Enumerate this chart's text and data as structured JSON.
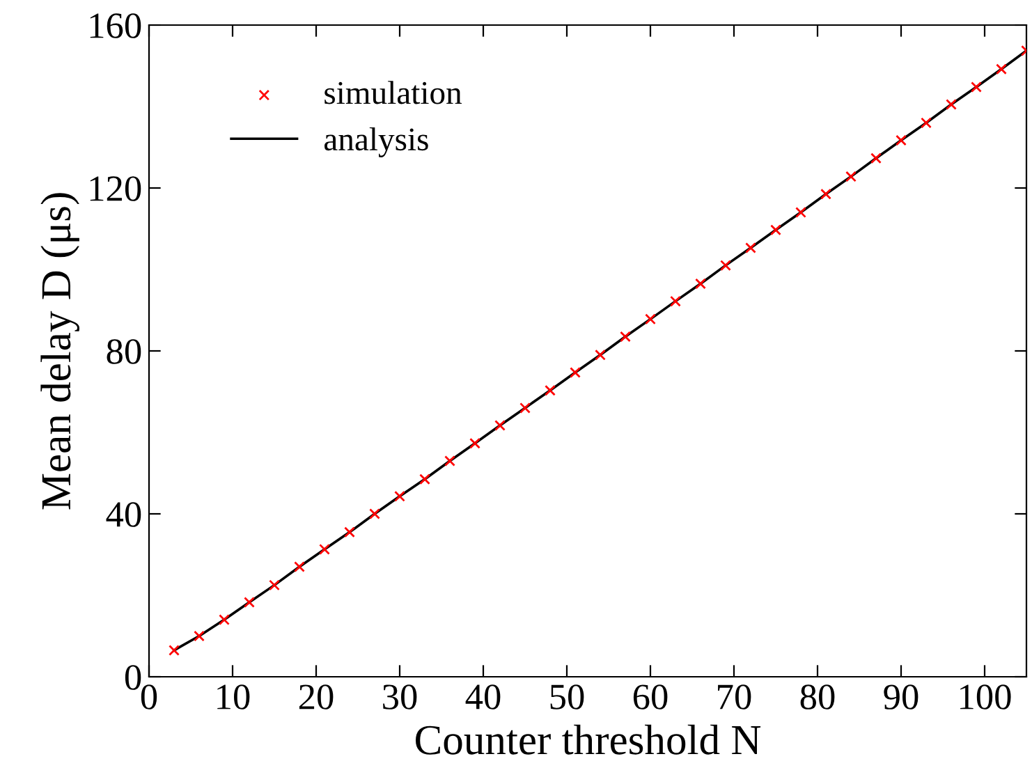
{
  "chart_data": {
    "type": "line",
    "xlabel": "Counter threshold N",
    "ylabel": "Mean delay D (μs)",
    "x": [
      3,
      6,
      9,
      12,
      15,
      18,
      21,
      24,
      27,
      30,
      33,
      36,
      39,
      42,
      45,
      48,
      51,
      54,
      57,
      60,
      63,
      66,
      69,
      72,
      75,
      78,
      81,
      84,
      87,
      90,
      93,
      96,
      99,
      102,
      105
    ],
    "series": [
      {
        "name": "simulation",
        "type": "scatter",
        "color": "#ff0000",
        "marker": "cross",
        "values": [
          6.5,
          10,
          14,
          18.3,
          22.5,
          27,
          31.3,
          35.5,
          40,
          44.3,
          48.5,
          53,
          57.3,
          61.7,
          66,
          70.3,
          74.7,
          79,
          83.5,
          87.8,
          92.2,
          96.5,
          101,
          105.3,
          109.7,
          114,
          118.5,
          122.8,
          127.3,
          131.7,
          136,
          140.5,
          144.8,
          149.2,
          153.7
        ]
      },
      {
        "name": "analysis",
        "color": "#000000",
        "line_style": "solid",
        "marker": "none",
        "values": [
          6.5,
          10,
          14,
          18.3,
          22.5,
          27,
          31.3,
          35.5,
          40,
          44.3,
          48.5,
          53,
          57.3,
          61.7,
          66,
          70.3,
          74.7,
          79,
          83.5,
          87.8,
          92.2,
          96.5,
          101,
          105.3,
          109.7,
          114,
          118.5,
          122.8,
          127.3,
          131.7,
          136,
          140.5,
          144.8,
          149.2,
          153.7
        ]
      }
    ],
    "xlim": [
      0,
      105
    ],
    "xticks": [
      0,
      10,
      20,
      30,
      40,
      50,
      60,
      70,
      80,
      90,
      100
    ],
    "ylim": [
      0,
      160
    ],
    "yticks": [
      0,
      40,
      80,
      120,
      160
    ],
    "grid": false,
    "legend": "top left"
  }
}
